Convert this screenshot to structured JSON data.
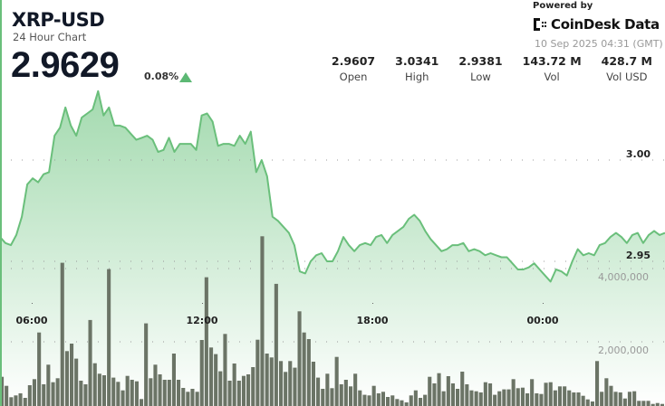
{
  "header": {
    "title": "XRP-USD",
    "subtitle": "24 Hour Chart",
    "price": "2.9629",
    "change": "0.08%",
    "change_direction": "up",
    "powered_by": "Powered by",
    "brand": "CoinDesk Data",
    "timestamp": "10 Sep 2025 04:31 (GMT)"
  },
  "stats": [
    {
      "value": "2.9607",
      "label": "Open"
    },
    {
      "value": "3.0341",
      "label": "High"
    },
    {
      "value": "2.9381",
      "label": "Low"
    },
    {
      "value": "143.72 M",
      "label": "Vol"
    },
    {
      "value": "428.7 M",
      "label": "Vol USD"
    }
  ],
  "colors": {
    "accent": "#6abf7b",
    "fill_top": "#a8dcb3",
    "bars": "#6b7466",
    "text": "#111827"
  },
  "chart_data": {
    "type": "line",
    "x_ticks": [
      "06:00",
      "12:00",
      "18:00",
      "00:00"
    ],
    "price_axis": {
      "ticks": [
        3.0,
        2.95
      ],
      "tick_labels": [
        "3.00",
        "2.95"
      ]
    },
    "volume_axis": {
      "ticks": [
        2000000,
        4000000
      ],
      "tick_labels": [
        "2,000,000",
        "4,000,000"
      ]
    },
    "grid": "dotted horizontal",
    "price": [
      2.962,
      2.959,
      2.958,
      2.963,
      2.972,
      2.988,
      2.991,
      2.989,
      2.993,
      2.994,
      3.012,
      3.016,
      3.026,
      3.017,
      3.012,
      3.021,
      3.023,
      3.025,
      3.034,
      3.022,
      3.026,
      3.017,
      3.017,
      3.016,
      3.013,
      3.01,
      3.011,
      3.012,
      3.01,
      3.004,
      3.005,
      3.011,
      3.004,
      3.008,
      3.008,
      3.008,
      3.005,
      3.022,
      3.023,
      3.019,
      3.007,
      3.008,
      3.008,
      3.007,
      3.012,
      3.008,
      3.014,
      2.994,
      3.0,
      2.992,
      2.972,
      2.97,
      2.967,
      2.964,
      2.958,
      2.945,
      2.944,
      2.95,
      2.953,
      2.954,
      2.95,
      2.95,
      2.955,
      2.962,
      2.958,
      2.955,
      2.958,
      2.959,
      2.958,
      2.962,
      2.963,
      2.959,
      2.963,
      2.965,
      2.967,
      2.971,
      2.973,
      2.97,
      2.965,
      2.961,
      2.958,
      2.955,
      2.956,
      2.958,
      2.958,
      2.959,
      2.955,
      2.956,
      2.955,
      2.953,
      2.954,
      2.953,
      2.952,
      2.952,
      2.949,
      2.946,
      2.946,
      2.947,
      2.949,
      2.946,
      2.943,
      2.94,
      2.946,
      2.945,
      2.943,
      2.95,
      2.956,
      2.953,
      2.954,
      2.953,
      2.958,
      2.959,
      2.962,
      2.964,
      2.962,
      2.959,
      2.963,
      2.964,
      2.959,
      2.963,
      2.965,
      2.963,
      2.964
    ],
    "volume": [
      1045000,
      798000,
      487000,
      535000,
      593000,
      469000,
      815000,
      980000,
      2255000,
      840000,
      1375000,
      897000,
      1004000,
      4157000,
      1745000,
      1951000,
      1540000,
      939000,
      840000,
      2594000,
      1416000,
      1128000,
      1087000,
      3985000,
      1021000,
      906000,
      675000,
      1070000,
      963000,
      922000,
      436000,
      2503000,
      1004000,
      1375000,
      1112000,
      963000,
      963000,
      1680000,
      963000,
      741000,
      634000,
      716000,
      634000,
      2050000,
      3763000,
      1844000,
      1663000,
      1194000,
      2215000,
      939000,
      1408000,
      939000,
      1070000,
      1112000,
      1309000,
      2058000,
      4882000,
      1680000,
      1572000,
      3582000,
      1474000,
      1177000,
      1474000,
      1293000,
      2832000,
      2255000,
      2075000,
      1458000,
      1021000,
      716000,
      1128000,
      733000,
      1588000,
      840000,
      963000,
      782000,
      1128000,
      675000,
      552000,
      535000,
      798000,
      593000,
      634000,
      494000,
      535000,
      436000,
      403000,
      346000,
      535000,
      675000,
      469000,
      552000,
      1045000,
      864000,
      1144000,
      650000,
      1062000,
      864000,
      716000,
      1186000,
      840000,
      675000,
      650000,
      617000,
      897000,
      864000,
      552000,
      650000,
      700000,
      700000,
      980000,
      733000,
      749000,
      593000,
      980000,
      593000,
      576000,
      881000,
      897000,
      675000,
      782000,
      782000,
      675000,
      617000,
      617000,
      527000,
      428000,
      370000,
      1474000,
      634000,
      1004000,
      798000,
      634000,
      617000,
      453000,
      634000,
      650000,
      387000,
      387000,
      387000,
      304000,
      329000,
      304000
    ]
  }
}
